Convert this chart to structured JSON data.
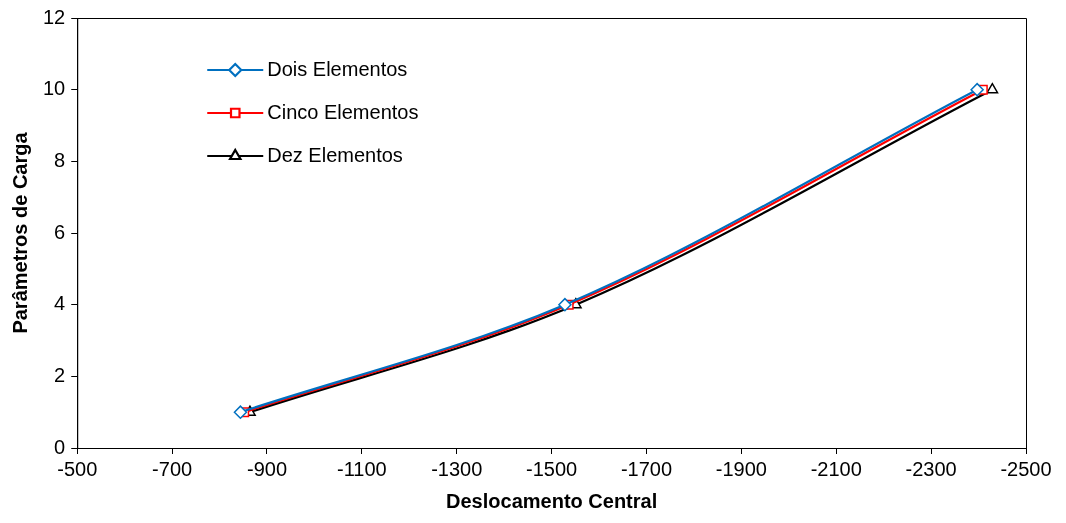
{
  "chart_data": {
    "type": "line",
    "xlabel": "Deslocamento Central",
    "ylabel": "Parâmetros de Carga",
    "xlim": [
      -500,
      -2500
    ],
    "xticks": [
      -500,
      -700,
      -900,
      -1100,
      -1300,
      -1500,
      -1700,
      -1900,
      -2100,
      -2300,
      -2500
    ],
    "ylim": [
      0,
      12
    ],
    "yticks": [
      0,
      2,
      4,
      6,
      8,
      10,
      12
    ],
    "grid": false,
    "legend": "top left",
    "series": [
      {
        "name": "Dois Elementos",
        "color": "#0070c0",
        "marker": "diamond",
        "x": [
          -844,
          -1528,
          -2397
        ],
        "values": [
          1,
          4,
          10
        ]
      },
      {
        "name": "Cinco Elementos",
        "color": "#ff0000",
        "marker": "square",
        "x": [
          -852,
          -1536,
          -2409
        ],
        "values": [
          1,
          4,
          10
        ]
      },
      {
        "name": "Dez Elementos",
        "color": "#000000",
        "marker": "triangle",
        "x": [
          -864,
          -1551,
          -2429
        ],
        "values": [
          1,
          4,
          10
        ]
      }
    ]
  }
}
